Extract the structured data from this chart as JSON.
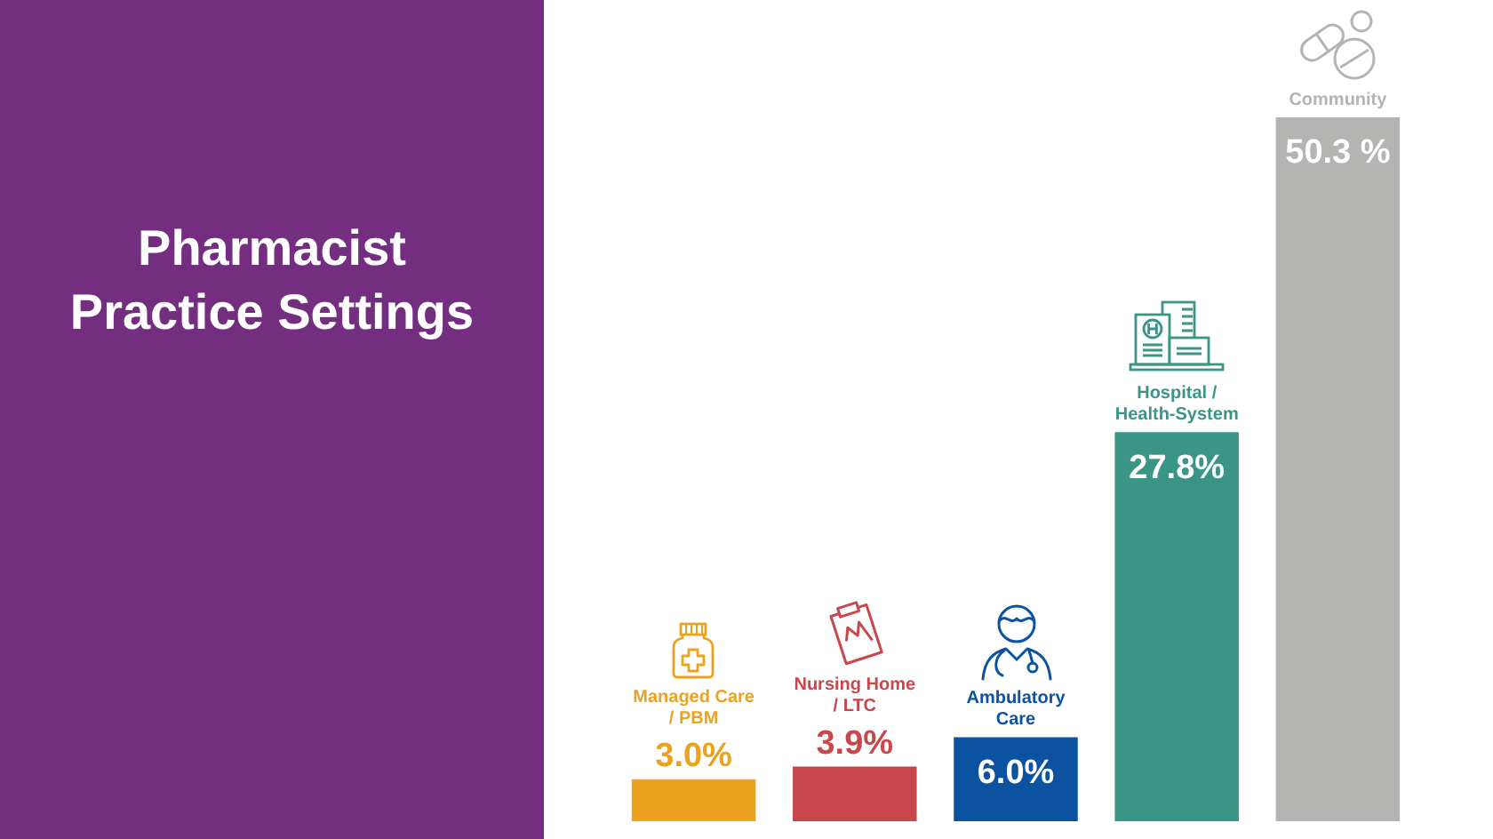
{
  "chart_data": {
    "type": "bar",
    "title": "Pharmacist Practice Settings",
    "categories": [
      "Managed Care / PBM",
      "Nursing Home / LTC",
      "Ambulatory Care",
      "Hospital / Health-System",
      "Community"
    ],
    "values": [
      3.0,
      3.9,
      6.0,
      27.8,
      50.3
    ],
    "colors": [
      "#eba21e",
      "#c8474d",
      "#0b52a0",
      "#3a9586",
      "#b4b5b2"
    ],
    "value_labels": [
      "3.0%",
      "3.9%",
      "6.0%",
      "27.8%",
      "50.3 %"
    ]
  }
}
